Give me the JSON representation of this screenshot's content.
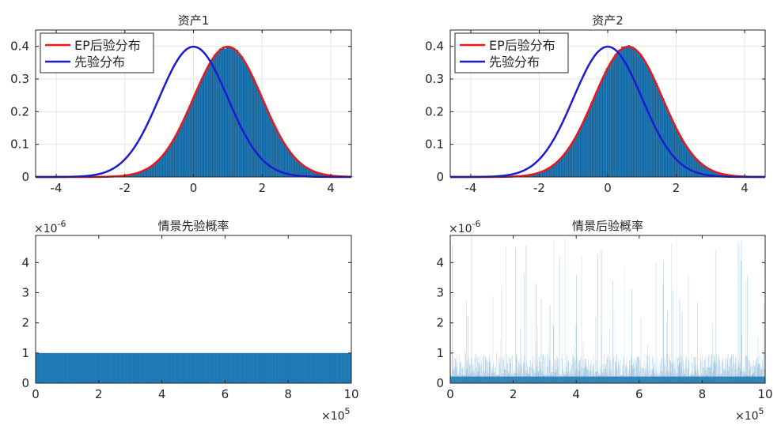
{
  "chart_data": [
    {
      "type": "histogram",
      "title": "资产1",
      "xlim": [
        -4.6,
        4.6
      ],
      "ylim": [
        0,
        0.45
      ],
      "xticks": [
        -4,
        -2,
        0,
        2,
        4
      ],
      "yticks": [
        0,
        0.1,
        0.2,
        0.3,
        0.4
      ],
      "xticklabels": [
        "-4",
        "-2",
        "0",
        "2",
        "4"
      ],
      "yticklabels": [
        "0",
        "0.1",
        "0.2",
        "0.3",
        "0.4"
      ],
      "grid": true,
      "legend_location": "top-left",
      "histogram": {
        "color": "#1f77b4",
        "bin_width": 0.05,
        "mean": 1.0,
        "sd": 1.0,
        "peak_density": 0.4
      },
      "series": [
        {
          "name": "EP后验分布",
          "color": "#e8191d",
          "kind": "normal-pdf",
          "mean": 1.0,
          "sd": 1.0
        },
        {
          "name": "先验分布",
          "color": "#1b1bd6",
          "kind": "normal-pdf",
          "mean": 0.0,
          "sd": 1.0
        }
      ]
    },
    {
      "type": "histogram",
      "title": "资产2",
      "xlim": [
        -4.6,
        4.6
      ],
      "ylim": [
        0,
        0.45
      ],
      "xticks": [
        -4,
        -2,
        0,
        2,
        4
      ],
      "yticks": [
        0,
        0.1,
        0.2,
        0.3,
        0.4
      ],
      "xticklabels": [
        "-4",
        "-2",
        "0",
        "2",
        "4"
      ],
      "yticklabels": [
        "0",
        "0.1",
        "0.2",
        "0.3",
        "0.4"
      ],
      "grid": true,
      "legend_location": "top-left",
      "histogram": {
        "color": "#1f77b4",
        "bin_width": 0.05,
        "mean": 0.6,
        "sd": 1.0,
        "peak_density": 0.4
      },
      "series": [
        {
          "name": "EP后验分布",
          "color": "#e8191d",
          "kind": "normal-pdf",
          "mean": 0.6,
          "sd": 1.0
        },
        {
          "name": "先验分布",
          "color": "#1b1bd6",
          "kind": "normal-pdf",
          "mean": 0.0,
          "sd": 1.0
        }
      ]
    },
    {
      "type": "bar",
      "title": "情景先验概率",
      "xlim": [
        0,
        10
      ],
      "ylim": [
        0,
        4.9
      ],
      "xticks": [
        0,
        2,
        4,
        6,
        8,
        10
      ],
      "yticks": [
        0,
        1,
        2,
        3,
        4
      ],
      "xticklabels": [
        "0",
        "2",
        "4",
        "6",
        "8",
        "10"
      ],
      "yticklabels": [
        "0",
        "1",
        "2",
        "3",
        "4"
      ],
      "x_multiplier": {
        "base": "×10",
        "exp": "5"
      },
      "y_multiplier": {
        "base": "×10",
        "exp": "-6"
      },
      "grid": false,
      "bars": {
        "color": "#1f77b4",
        "value": 1.0
      }
    },
    {
      "type": "bar",
      "title": "情景后验概率",
      "xlim": [
        0,
        10
      ],
      "ylim": [
        0,
        4.9
      ],
      "xticks": [
        0,
        2,
        4,
        6,
        8,
        10
      ],
      "yticks": [
        0,
        1,
        2,
        3,
        4
      ],
      "xticklabels": [
        "0",
        "2",
        "4",
        "6",
        "8",
        "10"
      ],
      "yticklabels": [
        "0",
        "1",
        "2",
        "3",
        "4"
      ],
      "x_multiplier": {
        "base": "×10",
        "exp": "5"
      },
      "y_multiplier": {
        "base": "×10",
        "exp": "-6"
      },
      "grid": false,
      "bars": {
        "color": "#1f77b4",
        "typical_max": 1.0,
        "spike_max": 4.9
      }
    }
  ]
}
